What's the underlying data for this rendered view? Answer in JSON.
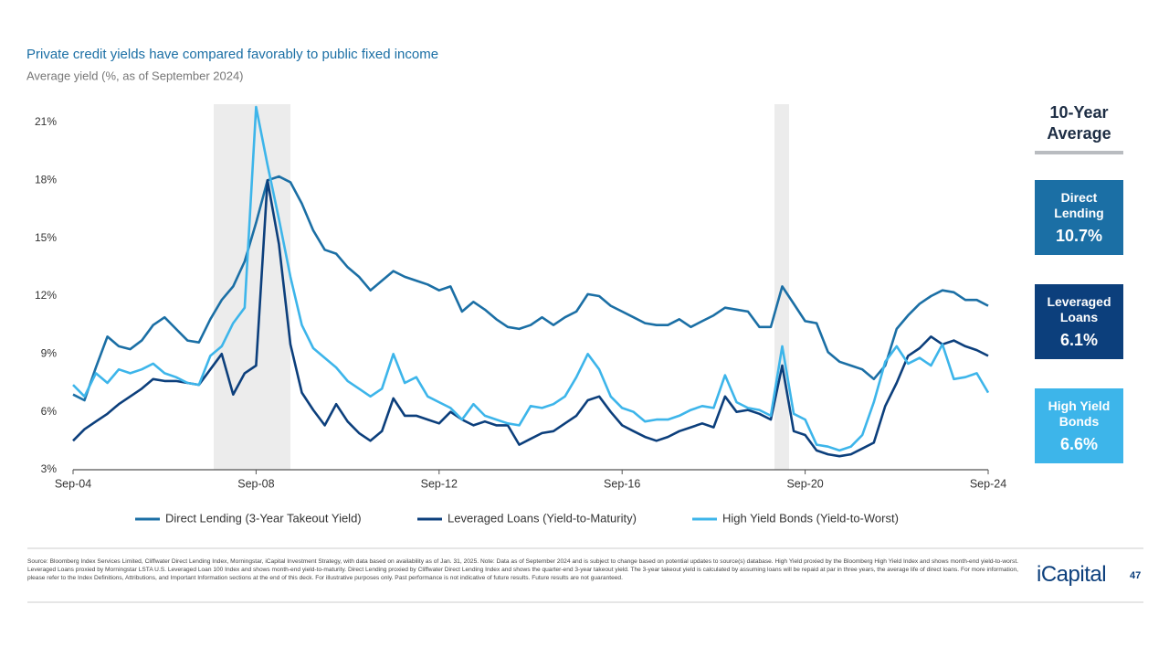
{
  "chart_data": {
    "type": "line",
    "title": "Private credit yields have compared favorably to public fixed income",
    "subtitle": "Average yield (%, as of September 2024)",
    "categories": [
      "Sep-04",
      null,
      null,
      null,
      null,
      null,
      null,
      null,
      null,
      null,
      null,
      null,
      null,
      null,
      null,
      null,
      "Sep-08",
      null,
      null,
      null,
      null,
      null,
      null,
      null,
      null,
      null,
      null,
      null,
      null,
      null,
      null,
      null,
      "Sep-12",
      null,
      null,
      null,
      null,
      null,
      null,
      null,
      null,
      null,
      null,
      null,
      null,
      null,
      null,
      null,
      "Sep-16",
      null,
      null,
      null,
      null,
      null,
      null,
      null,
      null,
      null,
      null,
      null,
      null,
      null,
      null,
      null,
      "Sep-20",
      null,
      null,
      null,
      null,
      null,
      null,
      null,
      null,
      null,
      null,
      null,
      null,
      null,
      null,
      null,
      "Sep-24"
    ],
    "ylim": [
      3,
      21
    ],
    "yticks": [
      {
        "value": 3,
        "label": "3%"
      },
      {
        "value": 6,
        "label": "6%"
      },
      {
        "value": 9,
        "label": "9%"
      },
      {
        "value": 12,
        "label": "12%"
      },
      {
        "value": 15,
        "label": "15%"
      },
      {
        "value": 18,
        "label": "18%"
      },
      {
        "value": 21,
        "label": "21%"
      }
    ],
    "grid": false,
    "legend": "bottom",
    "series": [
      {
        "name": "Direct Lending (3-Year Takeout Yield)",
        "color": "#1b6fa5",
        "values": [
          6.9,
          6.6,
          8.3,
          9.9,
          9.4,
          9.25,
          9.7,
          10.5,
          10.9,
          10.3,
          9.7,
          9.6,
          10.8,
          11.8,
          12.5,
          13.8,
          15.8,
          18.0,
          18.2,
          17.9,
          16.8,
          15.4,
          14.4,
          14.2,
          13.5,
          13.0,
          12.3,
          12.8,
          13.3,
          13.0,
          12.8,
          12.6,
          12.3,
          12.5,
          11.2,
          11.7,
          11.3,
          10.8,
          10.4,
          10.3,
          10.5,
          10.9,
          10.5,
          10.9,
          11.2,
          12.1,
          12.0,
          11.5,
          11.2,
          10.9,
          10.6,
          10.5,
          10.5,
          10.8,
          10.4,
          10.7,
          11.0,
          11.4,
          11.3,
          11.2,
          10.4,
          10.4,
          12.5,
          11.6,
          10.7,
          10.6,
          9.1,
          8.6,
          8.4,
          8.2,
          7.7,
          8.4,
          10.3,
          11.0,
          11.6,
          12.0,
          12.3,
          12.2,
          11.8,
          11.8,
          11.5
        ]
      },
      {
        "name": "Leveraged Loans (Yield-to-Maturity)",
        "color": "#0c3f7c",
        "values": [
          4.5,
          5.1,
          5.5,
          5.9,
          6.4,
          6.8,
          7.2,
          7.7,
          7.6,
          7.6,
          7.5,
          7.4,
          8.2,
          9.0,
          6.9,
          8.0,
          8.4,
          18.0,
          14.7,
          9.5,
          7.0,
          6.1,
          5.3,
          6.4,
          5.5,
          4.9,
          4.5,
          5.0,
          6.7,
          5.8,
          5.8,
          5.6,
          5.4,
          6.0,
          5.6,
          5.3,
          5.5,
          5.3,
          5.3,
          4.3,
          4.6,
          4.9,
          5.0,
          5.4,
          5.8,
          6.6,
          6.8,
          6.0,
          5.3,
          5.0,
          4.7,
          4.5,
          4.7,
          5.0,
          5.2,
          5.4,
          5.2,
          6.8,
          6.0,
          6.1,
          5.9,
          5.6,
          8.4,
          5.0,
          4.8,
          4.0,
          3.8,
          3.7,
          3.8,
          4.1,
          4.4,
          6.3,
          7.5,
          8.9,
          9.3,
          9.9,
          9.5,
          9.7,
          9.4,
          9.2,
          8.9
        ]
      },
      {
        "name": "High Yield Bonds (Yield-to-Worst)",
        "color": "#3db5ea",
        "values": [
          7.4,
          6.8,
          8.0,
          7.5,
          8.2,
          8.0,
          8.2,
          8.5,
          8.0,
          7.8,
          7.5,
          7.4,
          8.9,
          9.4,
          10.6,
          11.4,
          21.8,
          18.8,
          16.0,
          13.0,
          10.5,
          9.3,
          8.8,
          8.3,
          7.6,
          7.2,
          6.8,
          7.2,
          9.0,
          7.5,
          7.8,
          6.8,
          6.5,
          6.2,
          5.6,
          6.4,
          5.8,
          5.6,
          5.4,
          5.3,
          6.3,
          6.2,
          6.4,
          6.8,
          7.8,
          9.0,
          8.2,
          6.8,
          6.2,
          6.0,
          5.5,
          5.6,
          5.6,
          5.8,
          6.1,
          6.3,
          6.2,
          7.9,
          6.5,
          6.2,
          6.1,
          5.8,
          9.4,
          5.9,
          5.6,
          4.3,
          4.2,
          4.0,
          4.2,
          4.8,
          6.5,
          8.6,
          9.4,
          8.5,
          8.8,
          8.4,
          9.5,
          7.7,
          7.8,
          8.0,
          7.0
        ]
      }
    ],
    "averages": {
      "title": "10-Year Average",
      "names": [
        "Direct Lending",
        "Leveraged Loans",
        "High Yield Bonds"
      ],
      "values": [
        10.7,
        6.1,
        6.6
      ],
      "value_labels": [
        "10.7%",
        "6.1%",
        "6.6%"
      ]
    }
  },
  "footer": {
    "source": "Source: Bloomberg Index Services Limited, Cliffwater Direct Lending Index, Morningstar, iCapital Investment Strategy, with data based on availability as of Jan. 31, 2025. Note: Data as of September 2024 and is subject to change based on potential updates to source(s) database. High Yield proxied by the Bloomberg High Yield Index and shows month-end yield-to-worst. Leveraged Loans proxied by Morningstar LSTA U.S. Leveraged Loan 100 Index and shows month-end yield-to-maturity. Direct Lending proxied by Cliffwater Direct Lending Index and shows the quarter-end 3-year takeout yield. The 3-year takeout yield is calculated by assuming loans will be repaid at par in three years, the average life of direct loans. For more information, please refer to the Index Definitions, Attributions, and Important Information sections at the end of this deck. For illustrative purposes only. Past performance is not indicative of future results. Future results are not guaranteed.",
    "logo": "iCapital",
    "page": "47"
  }
}
